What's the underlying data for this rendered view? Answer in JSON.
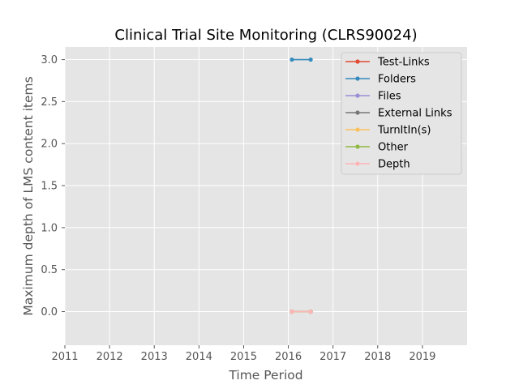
{
  "chart_data": {
    "type": "line",
    "title": "Clinical Trial Site Monitoring (CLRS90024)",
    "xlabel": "Time Period",
    "ylabel": "Maximum depth of LMS content items",
    "xlim": [
      2011,
      2020
    ],
    "ylim": [
      -0.4,
      3.15
    ],
    "x_ticks": [
      2011,
      2012,
      2013,
      2014,
      2015,
      2016,
      2017,
      2018,
      2019
    ],
    "y_ticks": [
      0.0,
      0.5,
      1.0,
      1.5,
      2.0,
      2.5,
      3.0
    ],
    "y_tick_labels": [
      "0.0",
      "0.5",
      "1.0",
      "1.5",
      "2.0",
      "2.5",
      "3.0"
    ],
    "grid": true,
    "legend_position": "top-right",
    "series": [
      {
        "name": "Test-Links",
        "color": "#E24A33",
        "x": [
          2016.08,
          2016.5
        ],
        "y": [
          0,
          0
        ]
      },
      {
        "name": "Folders",
        "color": "#348ABD",
        "x": [
          2016.08,
          2016.5
        ],
        "y": [
          3,
          3
        ]
      },
      {
        "name": "Files",
        "color": "#988ED5",
        "x": [
          2016.08,
          2016.5
        ],
        "y": [
          0,
          0
        ]
      },
      {
        "name": "External Links",
        "color": "#777777",
        "x": [
          2016.08,
          2016.5
        ],
        "y": [
          0,
          0
        ]
      },
      {
        "name": "TurnItIn(s)",
        "color": "#FBC15E",
        "x": [
          2016.08,
          2016.5
        ],
        "y": [
          0,
          0
        ]
      },
      {
        "name": "Other",
        "color": "#8EBA42",
        "x": [
          2016.08,
          2016.5
        ],
        "y": [
          0,
          0
        ]
      },
      {
        "name": "Depth",
        "color": "#FFB5B8",
        "x": [
          2016.08,
          2016.5
        ],
        "y": [
          0,
          0
        ]
      }
    ]
  }
}
